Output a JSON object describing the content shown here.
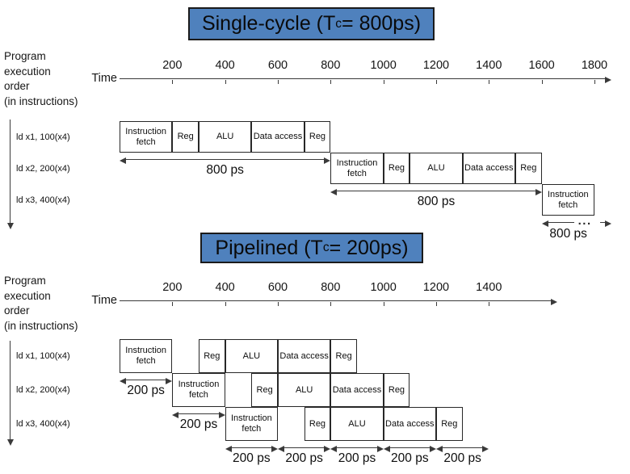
{
  "ellipsis": "...",
  "sections": [
    {
      "title": {
        "pre": "Single-cycle (T",
        "sub": "c",
        "post": "= 800ps)"
      },
      "left_header": [
        "Program",
        "execution",
        "order",
        "(in instructions)"
      ],
      "time_label": "Time",
      "axis_ticks": [
        200,
        400,
        600,
        800,
        1000,
        1200,
        1400,
        1600,
        1800
      ],
      "instructions": [
        {
          "label": "ld x1, 100(x4)",
          "stages": [
            {
              "label": "Instruction fetch",
              "start": 0,
              "end": 200
            },
            {
              "label": "Reg",
              "start": 200,
              "end": 300
            },
            {
              "label": "ALU",
              "start": 300,
              "end": 500
            },
            {
              "label": "Data access",
              "start": 500,
              "end": 700
            },
            {
              "label": "Reg",
              "start": 700,
              "end": 800
            }
          ]
        },
        {
          "label": "ld x2, 200(x4)",
          "stages": [
            {
              "label": "Instruction fetch",
              "start": 800,
              "end": 1000
            },
            {
              "label": "Reg",
              "start": 1000,
              "end": 1100
            },
            {
              "label": "ALU",
              "start": 1100,
              "end": 1300
            },
            {
              "label": "Data access",
              "start": 1300,
              "end": 1500
            },
            {
              "label": "Reg",
              "start": 1500,
              "end": 1600
            }
          ]
        },
        {
          "label": "ld x3, 400(x4)",
          "stages": [
            {
              "label": "Instruction fetch",
              "start": 1600,
              "end": 1800
            }
          ]
        }
      ],
      "duration_arrows": [
        {
          "label": "800 ps",
          "from": 0,
          "to": 800,
          "row": 1,
          "dots": false
        },
        {
          "label": "800 ps",
          "from": 800,
          "to": 1600,
          "row": 2,
          "dots": false
        },
        {
          "label": "800 ps",
          "from": 1600,
          "to": 1800,
          "row": 3,
          "dots": true
        }
      ]
    },
    {
      "title": {
        "pre": "Pipelined (T",
        "sub": "c",
        "post": "= 200ps)"
      },
      "left_header": [
        "Program",
        "execution",
        "order",
        "(in instructions)"
      ],
      "time_label": "Time",
      "axis_ticks": [
        200,
        400,
        600,
        800,
        1000,
        1200,
        1400
      ],
      "instructions": [
        {
          "label": "ld x1, 100(x4)",
          "stages": [
            {
              "label": "Instruction fetch",
              "start": 0,
              "end": 200
            },
            {
              "label": "Reg",
              "start": 300,
              "end": 400
            },
            {
              "label": "ALU",
              "start": 400,
              "end": 600
            },
            {
              "label": "Data access",
              "start": 600,
              "end": 800
            },
            {
              "label": "Reg",
              "start": 800,
              "end": 900
            }
          ]
        },
        {
          "label": "ld x2, 200(x4)",
          "stages": [
            {
              "label": "Instruction fetch",
              "start": 200,
              "end": 400
            },
            {
              "label": "Reg",
              "start": 500,
              "end": 600
            },
            {
              "label": "ALU",
              "start": 600,
              "end": 800
            },
            {
              "label": "Data access",
              "start": 800,
              "end": 1000
            },
            {
              "label": "Reg",
              "start": 1000,
              "end": 1100
            }
          ]
        },
        {
          "label": "ld x3, 400(x4)",
          "stages": [
            {
              "label": "Instruction fetch",
              "start": 400,
              "end": 600
            },
            {
              "label": "Reg",
              "start": 700,
              "end": 800
            },
            {
              "label": "ALU",
              "start": 800,
              "end": 1000
            },
            {
              "label": "Data access",
              "start": 1000,
              "end": 1200
            },
            {
              "label": "Reg",
              "start": 1200,
              "end": 1300
            }
          ]
        }
      ],
      "duration_arrows": [
        {
          "label": "200 ps",
          "from": 0,
          "to": 200,
          "row": 1,
          "dots": false
        },
        {
          "label": "200 ps",
          "from": 200,
          "to": 400,
          "row": 2,
          "dots": false
        },
        {
          "label": "200 ps",
          "from": 400,
          "to": 600,
          "row": 3,
          "dots": false
        },
        {
          "label": "200 ps",
          "from": 600,
          "to": 800,
          "row": 3,
          "dots": false
        },
        {
          "label": "200 ps",
          "from": 800,
          "to": 1000,
          "row": 3,
          "dots": false
        },
        {
          "label": "200 ps",
          "from": 1000,
          "to": 1200,
          "row": 3,
          "dots": false
        },
        {
          "label": "200 ps",
          "from": 1200,
          "to": 1400,
          "row": 3,
          "dots": false
        }
      ]
    }
  ],
  "colors": {
    "title_fill": "#4f81bd",
    "line": "#3a3a3a",
    "text": "#111111"
  }
}
